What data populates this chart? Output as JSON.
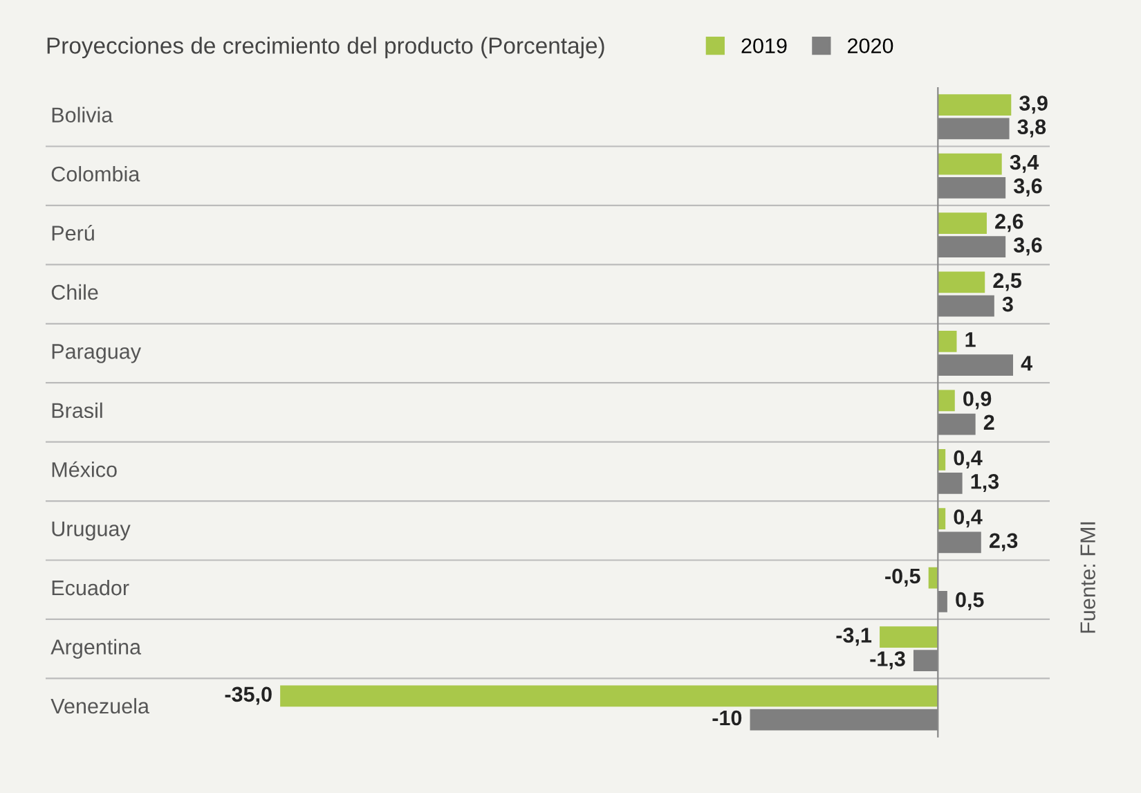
{
  "chart_data": {
    "type": "bar",
    "orientation": "horizontal",
    "title": "Proyecciones de crecimiento del producto (Porcentaje)",
    "categories": [
      "Bolivia",
      "Colombia",
      "Perú",
      "Chile",
      "Paraguay",
      "Brasil",
      "México",
      "Uruguay",
      "Ecuador",
      "Argentina",
      "Venezuela"
    ],
    "series": [
      {
        "name": "2019",
        "color": "#a9c84a",
        "values": [
          3.9,
          3.4,
          2.6,
          2.5,
          1,
          0.9,
          0.4,
          0.4,
          -0.5,
          -3.1,
          -35.0
        ],
        "value_labels": [
          "3,9",
          "3,4",
          "2,6",
          "2,5",
          "1",
          "0,9",
          "0,4",
          "0,4",
          "-0,5",
          "-3,1",
          "-35,0"
        ]
      },
      {
        "name": "2020",
        "color": "#7f7f7f",
        "values": [
          3.8,
          3.6,
          3.6,
          3,
          4,
          2,
          1.3,
          2.3,
          0.5,
          -1.3,
          -10
        ],
        "value_labels": [
          "3,8",
          "3,6",
          "3,6",
          "3",
          "4",
          "2",
          "1,3",
          "2,3",
          "0,5",
          "-1,3",
          "-10"
        ]
      }
    ],
    "legend": "top right",
    "tick_labels": "y",
    "annotations": [
      "Fuente: FMI"
    ]
  }
}
